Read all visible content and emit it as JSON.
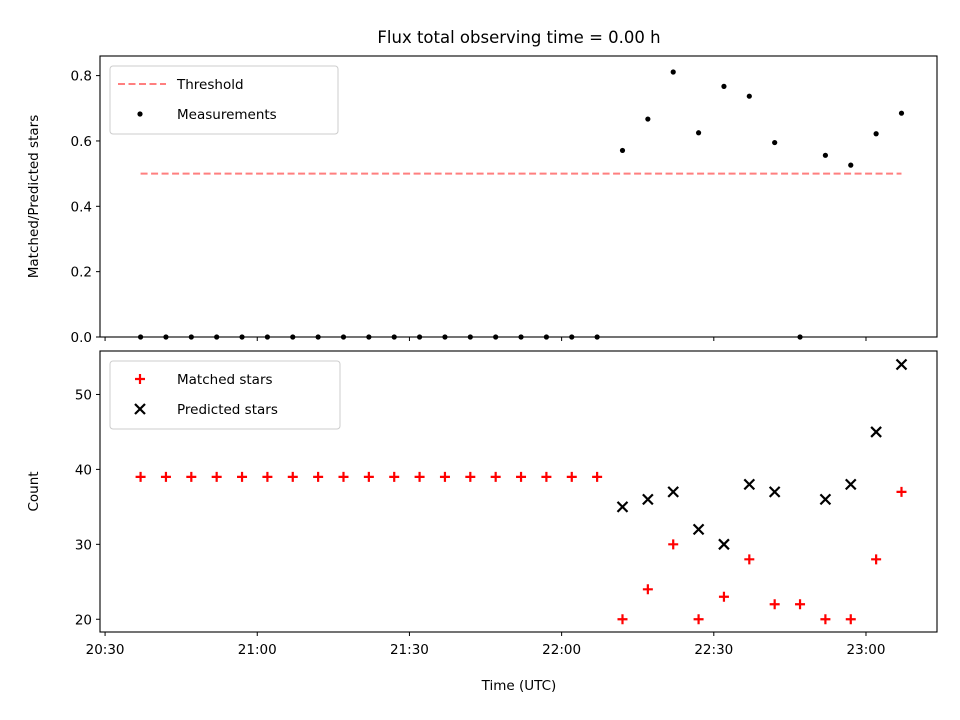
{
  "chart_data": {
    "title": "Flux total observing time = 0.00 h",
    "xlabel": "Time (UTC)",
    "xlim": [
      "20:29",
      "23:14"
    ],
    "x_tick_labels": [
      "20:30",
      "21:00",
      "21:30",
      "22:00",
      "22:30",
      "23:00"
    ],
    "time_points": [
      "20:37",
      "20:42",
      "20:47",
      "20:52",
      "20:57",
      "21:02",
      "21:07",
      "21:12",
      "21:17",
      "21:22",
      "21:27",
      "21:32",
      "21:37",
      "21:42",
      "21:47",
      "21:52",
      "21:57",
      "22:02",
      "22:07",
      "22:12",
      "22:17",
      "22:22",
      "22:27",
      "22:32",
      "22:37",
      "22:42",
      "22:47",
      "22:52",
      "22:57",
      "23:02",
      "23:07"
    ],
    "panels": [
      {
        "type": "scatter",
        "ylabel": "Matched/Predicted stars",
        "ylim": [
          0,
          0.86
        ],
        "y_ticks": [
          0.0,
          0.2,
          0.4,
          0.6,
          0.8
        ],
        "y_tick_labels": [
          "0.0",
          "0.2",
          "0.4",
          "0.6",
          "0.8"
        ],
        "legend_position": "top-left",
        "threshold": {
          "name": "Threshold",
          "value": 0.5,
          "x_range": [
            "20:37",
            "23:07"
          ],
          "color": "#ff7f7f"
        },
        "series": [
          {
            "name": "Measurements",
            "marker": "dot",
            "color": "#000000",
            "x": [
              "20:37",
              "20:42",
              "20:47",
              "20:52",
              "20:57",
              "21:02",
              "21:07",
              "21:12",
              "21:17",
              "21:22",
              "21:27",
              "21:32",
              "21:37",
              "21:42",
              "21:47",
              "21:52",
              "21:57",
              "22:02",
              "22:07",
              "22:12",
              "22:17",
              "22:22",
              "22:27",
              "22:32",
              "22:37",
              "22:42",
              "22:52",
              "22:57",
              "23:02",
              "23:07"
            ],
            "y": [
              0,
              0,
              0,
              0,
              0,
              0,
              0,
              0,
              0,
              0,
              0,
              0,
              0,
              0,
              0,
              0,
              0,
              0,
              0,
              0.571,
              0.667,
              0.811,
              0.625,
              0.767,
              0.737,
              0.595,
              0.556,
              0.526,
              0.622,
              0.685
            ]
          },
          {
            "name": "",
            "marker": "dot",
            "color": "#000000",
            "x": [
              "22:47"
            ],
            "y": [
              0
            ]
          }
        ]
      },
      {
        "type": "scatter",
        "ylabel": "Count",
        "ylim": [
          18.3,
          55.8
        ],
        "y_ticks": [
          20,
          30,
          40,
          50
        ],
        "y_tick_labels": [
          "20",
          "30",
          "40",
          "50"
        ],
        "legend_position": "top-left",
        "series": [
          {
            "name": "Matched stars",
            "marker": "plus",
            "color": "#ff0000",
            "x": [
              "20:37",
              "20:42",
              "20:47",
              "20:52",
              "20:57",
              "21:02",
              "21:07",
              "21:12",
              "21:17",
              "21:22",
              "21:27",
              "21:32",
              "21:37",
              "21:42",
              "21:47",
              "21:52",
              "21:57",
              "22:02",
              "22:07",
              "22:12",
              "22:17",
              "22:22",
              "22:27",
              "22:32",
              "22:37",
              "22:42",
              "22:47",
              "22:52",
              "22:57",
              "23:02",
              "23:07"
            ],
            "y": [
              39,
              39,
              39,
              39,
              39,
              39,
              39,
              39,
              39,
              39,
              39,
              39,
              39,
              39,
              39,
              39,
              39,
              39,
              39,
              20,
              24,
              30,
              20,
              23,
              28,
              22,
              22,
              20,
              20,
              28,
              37
            ]
          },
          {
            "name": "Predicted stars",
            "marker": "x",
            "color": "#000000",
            "x": [
              "22:12",
              "22:17",
              "22:22",
              "22:27",
              "22:32",
              "22:37",
              "22:42",
              "22:52",
              "22:57",
              "23:02",
              "23:07"
            ],
            "y": [
              35,
              36,
              37,
              32,
              30,
              38,
              37,
              36,
              38,
              45,
              54
            ]
          }
        ]
      }
    ]
  }
}
